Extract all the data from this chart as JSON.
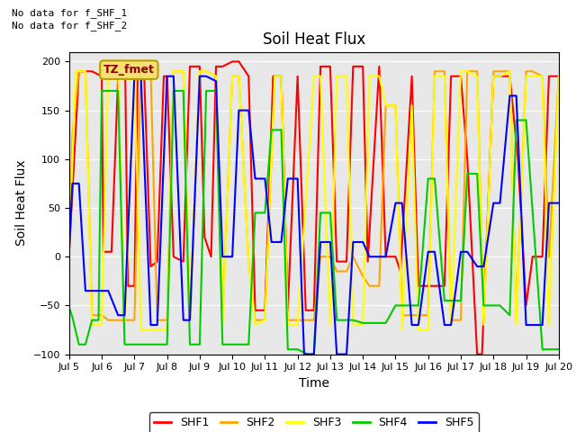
{
  "title": "Soil Heat Flux",
  "ylabel": "Soil Heat Flux",
  "xlabel": "Time",
  "ylim": [
    -100,
    210
  ],
  "yticks": [
    -100,
    -50,
    0,
    50,
    100,
    150,
    200
  ],
  "xtick_positions": [
    5,
    6,
    7,
    8,
    9,
    10,
    11,
    12,
    13,
    14,
    15,
    16,
    17,
    18,
    19,
    20
  ],
  "xlim": [
    5,
    20
  ],
  "annotations": [
    "No data for f_SHF_1",
    "No data for f_SHF_2"
  ],
  "tz_label": "TZ_fmet",
  "fig_bg": "#ffffff",
  "plot_bg": "#e8e8e8",
  "grid_color": "#ffffff",
  "legend_entries": [
    "SHF1",
    "SHF2",
    "SHF3",
    "SHF4",
    "SHF5"
  ],
  "legend_colors": [
    "#ff0000",
    "#ffa500",
    "#ffff00",
    "#00cc00",
    "#0000ff"
  ],
  "linewidth": 1.5,
  "series": {
    "SHF1": {
      "color": "#ff0000",
      "x": [
        5.0,
        5.3,
        5.7,
        6.0,
        6.05,
        6.3,
        6.5,
        6.72,
        6.8,
        7.0,
        7.1,
        7.3,
        7.5,
        7.7,
        7.9,
        8.0,
        8.2,
        8.5,
        8.7,
        9.0,
        9.15,
        9.35,
        9.5,
        9.7,
        10.0,
        10.2,
        10.5,
        10.7,
        11.0,
        11.25,
        11.5,
        11.7,
        12.0,
        12.25,
        12.5,
        12.7,
        13.0,
        13.2,
        13.5,
        13.7,
        14.0,
        14.15,
        14.5,
        14.7,
        15.0,
        15.15,
        15.5,
        15.7,
        16.0,
        16.15,
        16.5,
        16.7,
        17.0,
        17.2,
        17.5,
        17.65,
        18.0,
        18.15,
        18.5,
        18.75,
        19.0,
        19.2,
        19.5,
        19.7,
        20.0
      ],
      "y": [
        5,
        190,
        190,
        185,
        5,
        5,
        185,
        185,
        -30,
        -30,
        185,
        185,
        -10,
        -5,
        185,
        185,
        0,
        -5,
        195,
        195,
        20,
        0,
        195,
        195,
        200,
        200,
        185,
        -55,
        -55,
        185,
        185,
        -55,
        185,
        -55,
        -55,
        195,
        195,
        -5,
        -5,
        195,
        195,
        -5,
        195,
        0,
        0,
        -15,
        185,
        -30,
        -30,
        -30,
        -30,
        185,
        185,
        100,
        -100,
        -100,
        185,
        185,
        185,
        100,
        -50,
        0,
        0,
        185,
        185
      ]
    },
    "SHF2": {
      "color": "#ffa500",
      "x": [
        5.0,
        5.1,
        5.3,
        5.5,
        5.7,
        6.0,
        6.2,
        6.5,
        6.7,
        7.0,
        7.2,
        7.5,
        7.7,
        8.0,
        8.2,
        8.5,
        8.7,
        9.0,
        9.2,
        9.5,
        9.7,
        10.0,
        10.2,
        10.5,
        10.7,
        11.0,
        11.3,
        11.5,
        11.7,
        12.0,
        12.2,
        12.5,
        12.7,
        13.0,
        13.2,
        13.5,
        13.7,
        14.0,
        14.2,
        14.5,
        14.7,
        15.0,
        15.2,
        15.5,
        15.7,
        16.0,
        16.2,
        16.5,
        16.7,
        17.0,
        17.2,
        17.5,
        17.7,
        18.0,
        18.2,
        18.5,
        18.7,
        19.0,
        19.2,
        19.5,
        19.7,
        20.0
      ],
      "y": [
        5,
        125,
        190,
        190,
        -60,
        -60,
        -65,
        -65,
        -65,
        -65,
        190,
        190,
        -65,
        -65,
        190,
        190,
        -65,
        190,
        190,
        185,
        -65,
        185,
        185,
        -5,
        -65,
        -65,
        185,
        185,
        -65,
        -65,
        -65,
        -65,
        0,
        0,
        -15,
        -15,
        0,
        -20,
        -30,
        -30,
        155,
        155,
        -60,
        -60,
        -60,
        -60,
        190,
        190,
        -65,
        -65,
        190,
        190,
        -65,
        190,
        190,
        190,
        -65,
        190,
        190,
        185,
        0,
        185
      ]
    },
    "SHF3": {
      "color": "#ffff00",
      "x": [
        5.0,
        5.2,
        5.5,
        5.7,
        6.0,
        6.2,
        6.5,
        6.7,
        7.0,
        7.2,
        7.5,
        7.7,
        8.0,
        8.2,
        8.5,
        8.7,
        9.0,
        9.2,
        9.5,
        9.7,
        10.0,
        10.2,
        10.5,
        10.7,
        11.0,
        11.3,
        11.5,
        11.7,
        12.0,
        12.5,
        12.7,
        13.0,
        13.2,
        13.5,
        13.7,
        14.0,
        14.2,
        14.5,
        14.7,
        15.0,
        15.2,
        15.5,
        15.7,
        16.0,
        16.2,
        16.5,
        16.7,
        17.0,
        17.2,
        17.5,
        17.7,
        18.0,
        18.2,
        18.5,
        18.7,
        19.0,
        19.2,
        19.5,
        19.7,
        20.0
      ],
      "y": [
        5,
        190,
        190,
        -70,
        -70,
        190,
        190,
        -75,
        190,
        -75,
        -75,
        -75,
        -75,
        190,
        190,
        -65,
        190,
        190,
        185,
        -70,
        185,
        185,
        -5,
        -70,
        -65,
        185,
        185,
        -70,
        -70,
        185,
        185,
        -70,
        185,
        185,
        -70,
        -70,
        185,
        185,
        155,
        155,
        -75,
        155,
        -75,
        -75,
        185,
        185,
        -70,
        190,
        190,
        185,
        -70,
        185,
        185,
        190,
        -70,
        185,
        185,
        185,
        -70,
        185
      ]
    },
    "SHF4": {
      "color": "#00cc00",
      "x": [
        5.0,
        5.1,
        5.3,
        5.5,
        5.7,
        5.9,
        6.0,
        6.2,
        6.5,
        6.7,
        7.0,
        7.2,
        7.5,
        7.7,
        8.0,
        8.2,
        8.5,
        8.7,
        9.0,
        9.2,
        9.5,
        9.7,
        10.0,
        10.2,
        10.3,
        10.5,
        10.7,
        11.0,
        11.2,
        11.5,
        11.7,
        12.0,
        12.3,
        12.5,
        12.7,
        13.0,
        13.2,
        13.5,
        13.7,
        14.0,
        14.2,
        14.5,
        14.7,
        15.0,
        15.2,
        15.5,
        15.7,
        16.0,
        16.2,
        16.5,
        16.7,
        17.0,
        17.2,
        17.5,
        17.7,
        18.0,
        18.2,
        18.5,
        18.7,
        19.0,
        19.5,
        19.7,
        20.0
      ],
      "y": [
        -52,
        -62,
        -90,
        -90,
        -65,
        -65,
        170,
        170,
        170,
        -90,
        -90,
        -90,
        -90,
        -90,
        -90,
        170,
        170,
        -90,
        -90,
        170,
        170,
        -90,
        -90,
        -90,
        -90,
        -90,
        45,
        45,
        130,
        130,
        -95,
        -95,
        -100,
        -100,
        45,
        45,
        -65,
        -65,
        -65,
        -68,
        -68,
        -68,
        -68,
        -50,
        -50,
        -50,
        -50,
        80,
        80,
        -45,
        -45,
        -45,
        85,
        85,
        -50,
        -50,
        -50,
        -60,
        140,
        140,
        -95,
        -95,
        -95
      ]
    },
    "SHF5": {
      "color": "#0000ff",
      "x": [
        5.0,
        5.1,
        5.3,
        5.5,
        5.7,
        6.0,
        6.2,
        6.5,
        6.7,
        7.0,
        7.2,
        7.5,
        7.7,
        8.0,
        8.2,
        8.5,
        8.7,
        9.0,
        9.2,
        9.5,
        9.7,
        10.0,
        10.2,
        10.5,
        10.7,
        11.0,
        11.2,
        11.5,
        11.7,
        12.0,
        12.2,
        12.5,
        12.7,
        13.0,
        13.2,
        13.5,
        13.7,
        14.0,
        14.2,
        14.5,
        14.7,
        15.0,
        15.2,
        15.5,
        15.7,
        16.0,
        16.2,
        16.5,
        16.7,
        17.0,
        17.2,
        17.5,
        17.7,
        18.0,
        18.2,
        18.5,
        18.7,
        19.0,
        19.5,
        19.7,
        20.0
      ],
      "y": [
        5,
        75,
        75,
        -35,
        -35,
        -35,
        -35,
        -60,
        -60,
        185,
        185,
        -70,
        -70,
        185,
        185,
        -65,
        -65,
        185,
        185,
        180,
        0,
        0,
        150,
        150,
        80,
        80,
        15,
        15,
        80,
        80,
        -100,
        -100,
        15,
        15,
        -100,
        -100,
        15,
        15,
        0,
        0,
        0,
        55,
        55,
        -70,
        -70,
        5,
        5,
        -70,
        -70,
        5,
        5,
        -10,
        -10,
        55,
        55,
        165,
        165,
        -70,
        -70,
        55,
        55
      ]
    }
  }
}
